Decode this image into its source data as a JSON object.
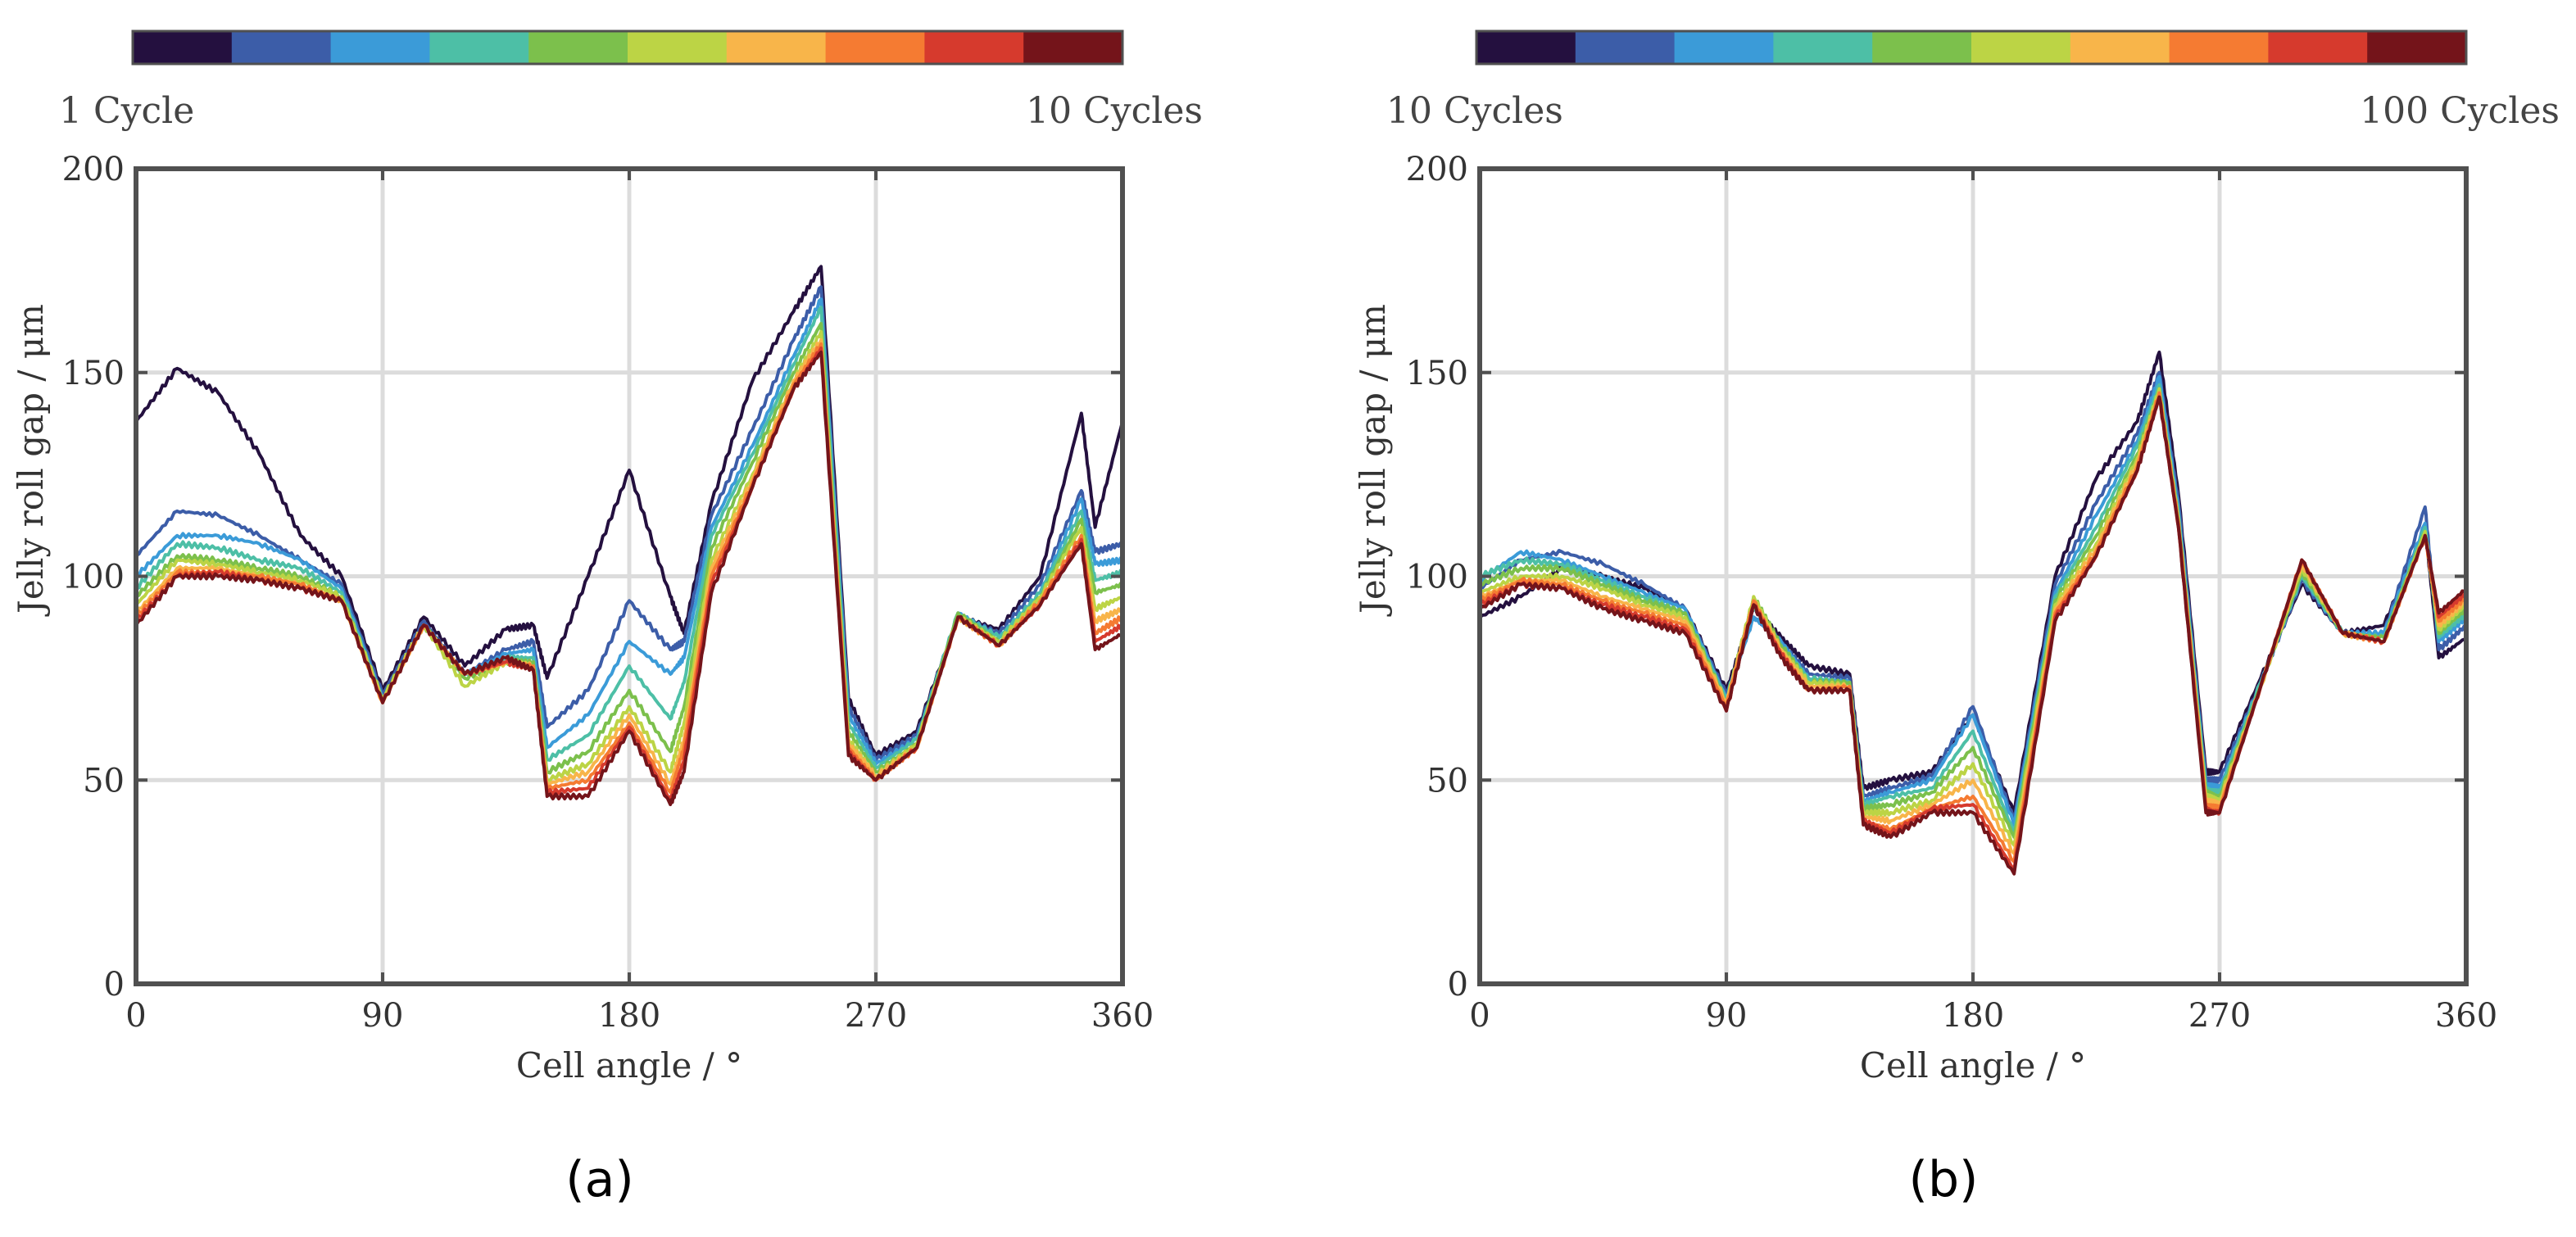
{
  "chart_data": [
    {
      "type": "line",
      "panel_label": "(a)",
      "xlabel": "Cell angle / °",
      "ylabel": "Jelly roll gap / μm",
      "xlim": [
        0,
        360
      ],
      "ylim": [
        0,
        200
      ],
      "xticks": [
        "0",
        "90",
        "180",
        "270",
        "360"
      ],
      "yticks": [
        "0",
        "50",
        "100",
        "150",
        "200"
      ],
      "grid": true,
      "colorbar": {
        "min_label": "1 Cycle",
        "max_label": "10 Cycles"
      },
      "x": [
        0,
        15,
        30,
        45,
        60,
        75,
        90,
        105,
        120,
        135,
        145,
        150,
        165,
        180,
        195,
        200,
        210,
        225,
        240,
        250,
        260,
        270,
        285,
        300,
        315,
        330,
        345,
        350,
        360
      ],
      "series": [
        {
          "name": "1",
          "values": [
            138,
            151,
            145,
            130,
            110,
            100,
            72,
            90,
            78,
            87,
            88,
            75,
            100,
            126,
            95,
            86,
            118,
            148,
            165,
            176,
            70,
            56,
            62,
            90,
            87,
            100,
            140,
            112,
            138
          ]
        },
        {
          "name": "2",
          "values": [
            105,
            116,
            115,
            110,
            104,
            98,
            71,
            89,
            76,
            82,
            84,
            63,
            72,
            94,
            82,
            84,
            115,
            136,
            158,
            171,
            68,
            55,
            61,
            90,
            86,
            98,
            121,
            106,
            108
          ]
        },
        {
          "name": "3",
          "values": [
            100,
            110,
            110,
            108,
            104,
            97,
            70,
            88,
            76,
            81,
            82,
            58,
            66,
            84,
            76,
            80,
            112,
            132,
            154,
            168,
            66,
            54,
            60,
            91,
            85,
            96,
            119,
            103,
            104
          ]
        },
        {
          "name": "4",
          "values": [
            97,
            108,
            107,
            104,
            102,
            96,
            70,
            88,
            75,
            80,
            80,
            55,
            61,
            78,
            65,
            74,
            110,
            130,
            152,
            166,
            64,
            53,
            60,
            91,
            85,
            96,
            116,
            99,
            101
          ]
        },
        {
          "name": "5",
          "values": [
            95,
            105,
            104,
            102,
            100,
            95,
            70,
            88,
            75,
            79,
            79,
            52,
            57,
            72,
            57,
            68,
            107,
            128,
            150,
            162,
            62,
            52,
            59,
            91,
            84,
            95,
            114,
            96,
            98
          ]
        },
        {
          "name": "6",
          "values": [
            93,
            104,
            103,
            101,
            99,
            95,
            70,
            88,
            73,
            79,
            78,
            50,
            54,
            68,
            52,
            64,
            104,
            125,
            148,
            160,
            60,
            51,
            59,
            90,
            84,
            95,
            112,
            92,
            95
          ]
        },
        {
          "name": "7",
          "values": [
            91,
            102,
            102,
            100,
            98,
            94,
            69,
            88,
            76,
            79,
            78,
            49,
            52,
            66,
            49,
            60,
            102,
            124,
            148,
            158,
            59,
            51,
            58,
            90,
            83,
            94,
            110,
            89,
            92
          ]
        },
        {
          "name": "8",
          "values": [
            90,
            101,
            101,
            100,
            98,
            94,
            69,
            88,
            76,
            79,
            78,
            48,
            50,
            64,
            47,
            58,
            100,
            123,
            147,
            157,
            58,
            50,
            58,
            90,
            83,
            94,
            110,
            86,
            90
          ]
        },
        {
          "name": "9",
          "values": [
            89,
            100,
            101,
            99,
            97,
            94,
            69,
            88,
            76,
            79,
            77,
            47,
            48,
            63,
            45,
            55,
            98,
            122,
            146,
            156,
            57,
            50,
            58,
            90,
            83,
            93,
            109,
            84,
            88
          ]
        },
        {
          "name": "10",
          "values": [
            88,
            100,
            100,
            99,
            97,
            94,
            69,
            88,
            76,
            80,
            77,
            46,
            46,
            62,
            44,
            52,
            96,
            122,
            146,
            155,
            56,
            50,
            58,
            90,
            83,
            93,
            108,
            82,
            86
          ]
        }
      ]
    },
    {
      "type": "line",
      "panel_label": "(b)",
      "xlabel": "Cell angle / °",
      "ylabel": "Jelly roll gap / μm",
      "xlim": [
        0,
        360
      ],
      "ylim": [
        0,
        200
      ],
      "xticks": [
        "0",
        "90",
        "180",
        "270",
        "360"
      ],
      "yticks": [
        "0",
        "50",
        "100",
        "150",
        "200"
      ],
      "grid": true,
      "colorbar": {
        "min_label": "10 Cycles",
        "max_label": "100 Cycles"
      },
      "x": [
        0,
        15,
        30,
        45,
        60,
        75,
        90,
        100,
        110,
        120,
        135,
        140,
        150,
        165,
        180,
        195,
        210,
        225,
        240,
        248,
        255,
        265,
        270,
        285,
        300,
        315,
        330,
        345,
        350,
        360
      ],
      "series": [
        {
          "name": "10",
          "values": [
            90,
            95,
            102,
            100,
            97,
            92,
            72,
            92,
            85,
            78,
            76,
            48,
            50,
            52,
            66,
            42,
            100,
            124,
            138,
            155,
            120,
            52,
            52,
            75,
            98,
            86,
            88,
            112,
            80,
            85
          ]
        },
        {
          "name": "20",
          "values": [
            97,
            104,
            106,
            103,
            98,
            92,
            71,
            90,
            84,
            76,
            75,
            46,
            48,
            51,
            68,
            40,
            98,
            118,
            135,
            150,
            118,
            50,
            50,
            74,
            99,
            86,
            86,
            117,
            82,
            88
          ]
        },
        {
          "name": "30",
          "values": [
            99,
            106,
            104,
            100,
            96,
            92,
            70,
            90,
            84,
            75,
            74,
            45,
            47,
            50,
            66,
            39,
            96,
            115,
            133,
            149,
            116,
            49,
            48,
            74,
            100,
            86,
            86,
            113,
            84,
            90
          ]
        },
        {
          "name": "40",
          "values": [
            100,
            104,
            103,
            99,
            95,
            91,
            70,
            93,
            83,
            75,
            74,
            44,
            46,
            48,
            62,
            37,
            95,
            112,
            132,
            147,
            115,
            48,
            47,
            74,
            100,
            86,
            85,
            112,
            85,
            91
          ]
        },
        {
          "name": "50",
          "values": [
            98,
            102,
            102,
            98,
            94,
            91,
            69,
            95,
            83,
            74,
            74,
            43,
            44,
            47,
            58,
            36,
            94,
            110,
            130,
            146,
            114,
            47,
            46,
            73,
            101,
            86,
            85,
            111,
            86,
            92
          ]
        },
        {
          "name": "60",
          "values": [
            96,
            100,
            100,
            97,
            93,
            90,
            69,
            95,
            82,
            74,
            73,
            42,
            42,
            45,
            54,
            34,
            93,
            108,
            129,
            146,
            114,
            46,
            45,
            73,
            102,
            86,
            84,
            111,
            87,
            93
          ]
        },
        {
          "name": "70",
          "values": [
            95,
            99,
            99,
            95,
            92,
            89,
            69,
            94,
            82,
            73,
            73,
            41,
            40,
            44,
            50,
            32,
            92,
            107,
            128,
            145,
            113,
            45,
            44,
            73,
            103,
            86,
            84,
            110,
            88,
            94
          ]
        },
        {
          "name": "80",
          "values": [
            94,
            99,
            98,
            94,
            91,
            88,
            68,
            94,
            81,
            72,
            73,
            40,
            38,
            43,
            46,
            30,
            91,
            106,
            127,
            145,
            113,
            44,
            43,
            73,
            104,
            86,
            84,
            110,
            89,
            95
          ]
        },
        {
          "name": "90",
          "values": [
            93,
            98,
            97,
            93,
            90,
            87,
            67,
            93,
            81,
            72,
            72,
            40,
            37,
            43,
            44,
            28,
            90,
            105,
            126,
            144,
            112,
            43,
            42,
            73,
            104,
            86,
            84,
            110,
            90,
            96
          ]
        },
        {
          "name": "100",
          "values": [
            92,
            98,
            97,
            92,
            89,
            86,
            67,
            93,
            80,
            72,
            72,
            39,
            36,
            42,
            42,
            27,
            89,
            105,
            126,
            144,
            112,
            42,
            42,
            73,
            104,
            86,
            84,
            110,
            91,
            97
          ]
        }
      ]
    }
  ],
  "palette": [
    "#24103f",
    "#3c5da8",
    "#3b9bd8",
    "#4dbfa6",
    "#7cc04c",
    "#bcd445",
    "#f8b54a",
    "#f57b32",
    "#d63a2d",
    "#74141a"
  ]
}
